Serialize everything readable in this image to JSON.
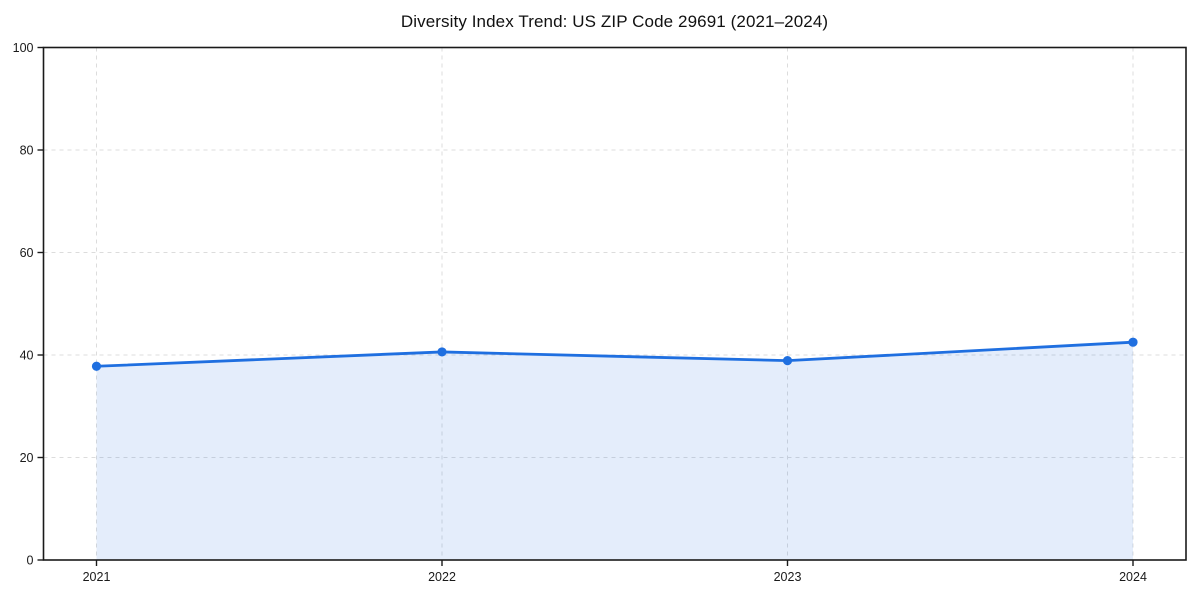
{
  "page": {
    "background": "#ffffff"
  },
  "chart_data": {
    "type": "area",
    "title": "Diversity Index Trend: US ZIP Code 29691 (2021–2024)",
    "categories": [
      "2021",
      "2022",
      "2023",
      "2024"
    ],
    "values": [
      37.8,
      40.6,
      38.9,
      42.5
    ],
    "xlabel": "",
    "ylabel": "",
    "ylim": [
      0,
      100
    ],
    "yticks": [
      0,
      20,
      40,
      60,
      80,
      100
    ],
    "grid": {
      "visible": true,
      "style": "dashed",
      "axes": "both",
      "color": "#dcdcdc"
    },
    "legend": "none",
    "line_color": "#1f6fe0",
    "marker": "circle",
    "fill_color": "#1f6fe0",
    "fill_opacity": 0.12,
    "axis_color": "#1a1a1a",
    "tick_label_color": "#1a1a1a",
    "plot_background": "#ffffff"
  }
}
